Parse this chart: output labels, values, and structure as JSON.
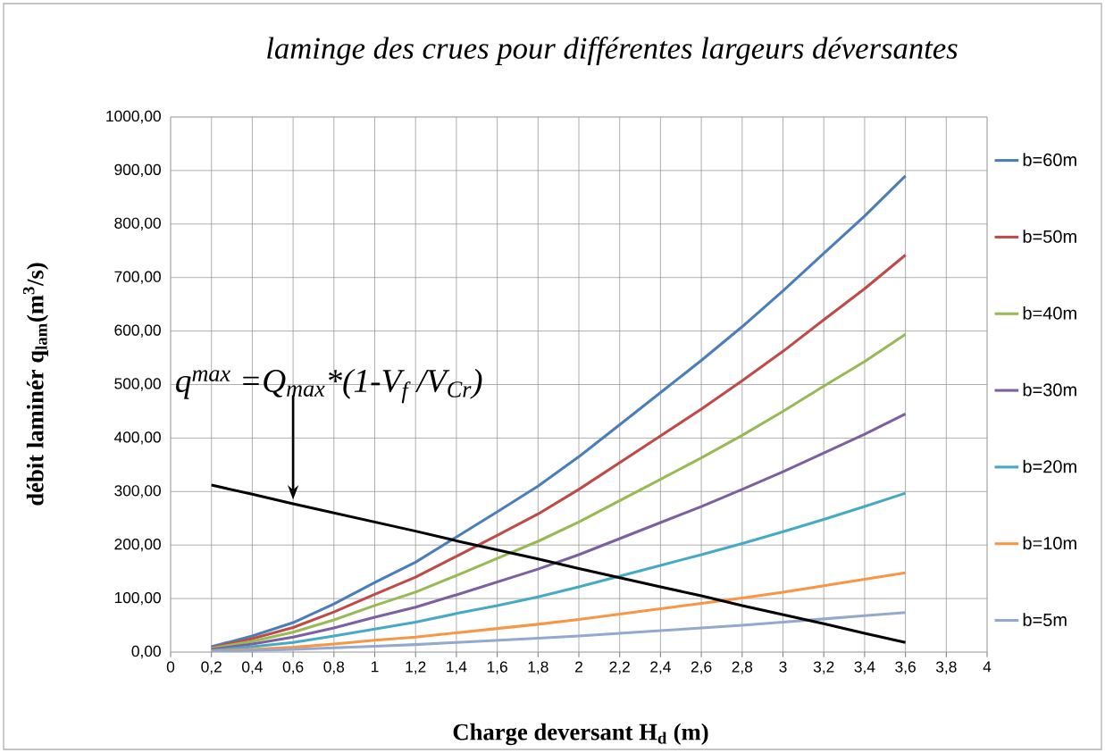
{
  "chart_data": {
    "type": "line",
    "title": "laminge des crues pour différentes largeurs déversantes",
    "xlabel": "Charge deversant H$_{d}$ (m)",
    "ylabel": "débit laminér q$_{lam}$(m$^{3}$/s)",
    "x": [
      0.2,
      0.4,
      0.6,
      0.8,
      1.0,
      1.2,
      1.4,
      1.6,
      1.8,
      2.0,
      2.2,
      2.4,
      2.6,
      2.8,
      3.0,
      3.2,
      3.4,
      3.6
    ],
    "series": [
      {
        "name": "b=60m",
        "color": "#4a7ebb",
        "values": [
          10,
          30,
          55,
          90,
          130,
          168,
          215,
          262,
          310,
          365,
          425,
          485,
          545,
          608,
          675,
          745,
          815,
          890
        ]
      },
      {
        "name": "b=50m",
        "color": "#be4b48",
        "values": [
          8,
          25,
          46,
          75,
          108,
          140,
          179,
          218,
          258,
          304,
          354,
          404,
          454,
          507,
          562,
          621,
          679,
          742
        ]
      },
      {
        "name": "b=40m",
        "color": "#98b954",
        "values": [
          7,
          20,
          37,
          60,
          87,
          112,
          143,
          175,
          207,
          243,
          283,
          323,
          363,
          405,
          450,
          497,
          543,
          594
        ]
      },
      {
        "name": "b=30m",
        "color": "#7d60a0",
        "values": [
          5,
          15,
          28,
          45,
          65,
          84,
          107,
          131,
          155,
          182,
          212,
          242,
          272,
          304,
          337,
          372,
          407,
          445
        ]
      },
      {
        "name": "b=20m",
        "color": "#46aac5",
        "values": [
          3,
          10,
          18,
          30,
          43,
          56,
          72,
          87,
          103,
          122,
          142,
          162,
          182,
          203,
          225,
          248,
          272,
          297
        ]
      },
      {
        "name": "b=10m",
        "color": "#f79646",
        "values": [
          2,
          5,
          9,
          15,
          22,
          28,
          36,
          44,
          52,
          61,
          71,
          81,
          91,
          101,
          112,
          124,
          136,
          148
        ]
      },
      {
        "name": "b=5m",
        "color": "#93a9cf",
        "values": [
          1,
          3,
          5,
          8,
          11,
          14,
          18,
          22,
          26,
          30,
          35,
          40,
          45,
          50,
          56,
          62,
          68,
          74
        ]
      },
      {
        "color": "#000000",
        "values": [
          312,
          295,
          277,
          260,
          243,
          226,
          208,
          191,
          174,
          156,
          139,
          122,
          105,
          87,
          70,
          53,
          35,
          18
        ]
      }
    ],
    "xlim": [
      0,
      4
    ],
    "ylim": [
      0,
      1000
    ],
    "xticks": [
      0,
      {
        "value": 0.2,
        "label": "0,2"
      },
      {
        "value": 0.4,
        "label": "0,4"
      },
      {
        "value": 0.6,
        "label": "0,6"
      },
      {
        "value": 0.8,
        "label": "0,8"
      },
      1,
      {
        "value": 1.2,
        "label": "1,2"
      },
      {
        "value": 1.4,
        "label": "1,4"
      },
      {
        "value": 1.6,
        "label": "1,6"
      },
      {
        "value": 1.8,
        "label": "1,8"
      },
      2,
      {
        "value": 2.2,
        "label": "2,2"
      },
      {
        "value": 2.4,
        "label": "2,4"
      },
      {
        "value": 2.6,
        "label": "2,6"
      },
      {
        "value": 2.8,
        "label": "2,8"
      },
      3,
      {
        "value": 3.2,
        "label": "3,2"
      },
      {
        "value": 3.4,
        "label": "3,4"
      },
      {
        "value": 3.6,
        "label": "3,6"
      },
      {
        "value": 3.8,
        "label": "3,8"
      },
      4
    ],
    "yticks": [
      {
        "value": 0,
        "label": "0,00"
      },
      {
        "value": 100,
        "label": "100,00"
      },
      {
        "value": 200,
        "label": "200,00"
      },
      {
        "value": 300,
        "label": "300,00"
      },
      {
        "value": 400,
        "label": "400,00"
      },
      {
        "value": 500,
        "label": "500,00"
      },
      {
        "value": 600,
        "label": "600,00"
      },
      {
        "value": 700,
        "label": "700,00"
      },
      {
        "value": 800,
        "label": "800,00"
      },
      {
        "value": 900,
        "label": "900,00"
      },
      {
        "value": 1000,
        "label": "1000,00"
      }
    ],
    "annotations": [
      "q$^{max}$ =Q$_{max}$*(1-V$_{f}$ /V$_{Cr}$)"
    ],
    "grid": true,
    "legend": "right",
    "marker": "none",
    "line_style": "solid"
  }
}
